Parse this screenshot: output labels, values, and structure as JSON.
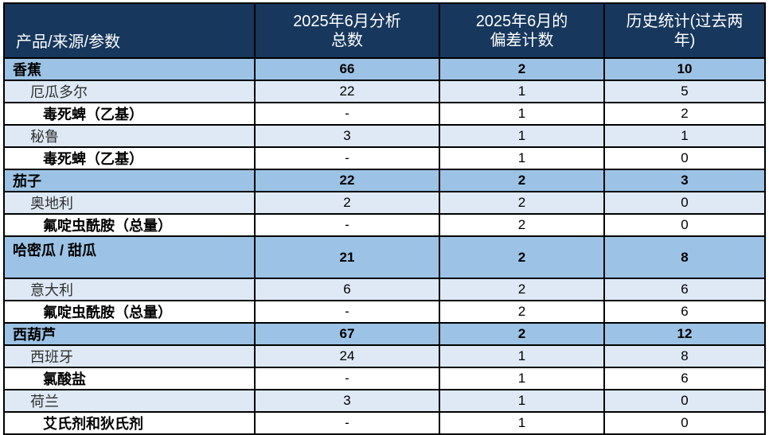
{
  "table": {
    "columns": [
      {
        "name": "product-source-parameter",
        "lines": [
          "产品/来源/参数"
        ]
      },
      {
        "name": "analyzed-total",
        "lines": [
          "2025年6月分析",
          "总数"
        ]
      },
      {
        "name": "deviation-count",
        "lines": [
          "2025年6月的",
          "偏差计数"
        ]
      },
      {
        "name": "history-stats",
        "lines": [
          "历史统计(过去两",
          "年)"
        ]
      }
    ],
    "rows": [
      {
        "type": "product",
        "label": "香蕉",
        "analyzed": "66",
        "deviations": "2",
        "history": "10"
      },
      {
        "type": "country",
        "label": "厄瓜多尔",
        "analyzed": "22",
        "deviations": "1",
        "history": "5"
      },
      {
        "type": "parameter",
        "label": "毒死蜱（乙基）",
        "analyzed": "-",
        "deviations": "1",
        "history": "2"
      },
      {
        "type": "country",
        "label": "秘鲁",
        "analyzed": "3",
        "deviations": "1",
        "history": "1"
      },
      {
        "type": "parameter",
        "label": "毒死蜱（乙基）",
        "analyzed": "-",
        "deviations": "1",
        "history": "0"
      },
      {
        "type": "product",
        "label": "茄子",
        "analyzed": "22",
        "deviations": "2",
        "history": "3"
      },
      {
        "type": "country",
        "label": "奥地利",
        "analyzed": "2",
        "deviations": "2",
        "history": "0"
      },
      {
        "type": "parameter",
        "label": "氟啶虫酰胺（总量）",
        "analyzed": "-",
        "deviations": "2",
        "history": "0"
      },
      {
        "type": "product",
        "label": "哈密瓜 / 甜瓜",
        "analyzed": "21",
        "deviations": "2",
        "history": "8",
        "tall": true
      },
      {
        "type": "country",
        "label": "意大利",
        "analyzed": "6",
        "deviations": "2",
        "history": "6"
      },
      {
        "type": "parameter",
        "label": "氟啶虫酰胺（总量）",
        "analyzed": "-",
        "deviations": "2",
        "history": "6"
      },
      {
        "type": "product",
        "label": "西葫芦",
        "analyzed": "67",
        "deviations": "2",
        "history": "12"
      },
      {
        "type": "country",
        "label": "西班牙",
        "analyzed": "24",
        "deviations": "1",
        "history": "8"
      },
      {
        "type": "parameter",
        "label": "氯酸盐",
        "analyzed": "-",
        "deviations": "1",
        "history": "6"
      },
      {
        "type": "country",
        "label": "荷兰",
        "analyzed": "3",
        "deviations": "1",
        "history": "0"
      },
      {
        "type": "parameter",
        "label": "艾氏剂和狄氏剂",
        "analyzed": "-",
        "deviations": "1",
        "history": "0"
      }
    ],
    "colors": {
      "header_bg": "#17375D",
      "header_text": "#FFFFFF",
      "product_row_bg": "#9CC3E5",
      "country_row_bg": "#DEE9F5",
      "parameter_row_bg": "#FFFFFF",
      "border": "#000000"
    }
  }
}
